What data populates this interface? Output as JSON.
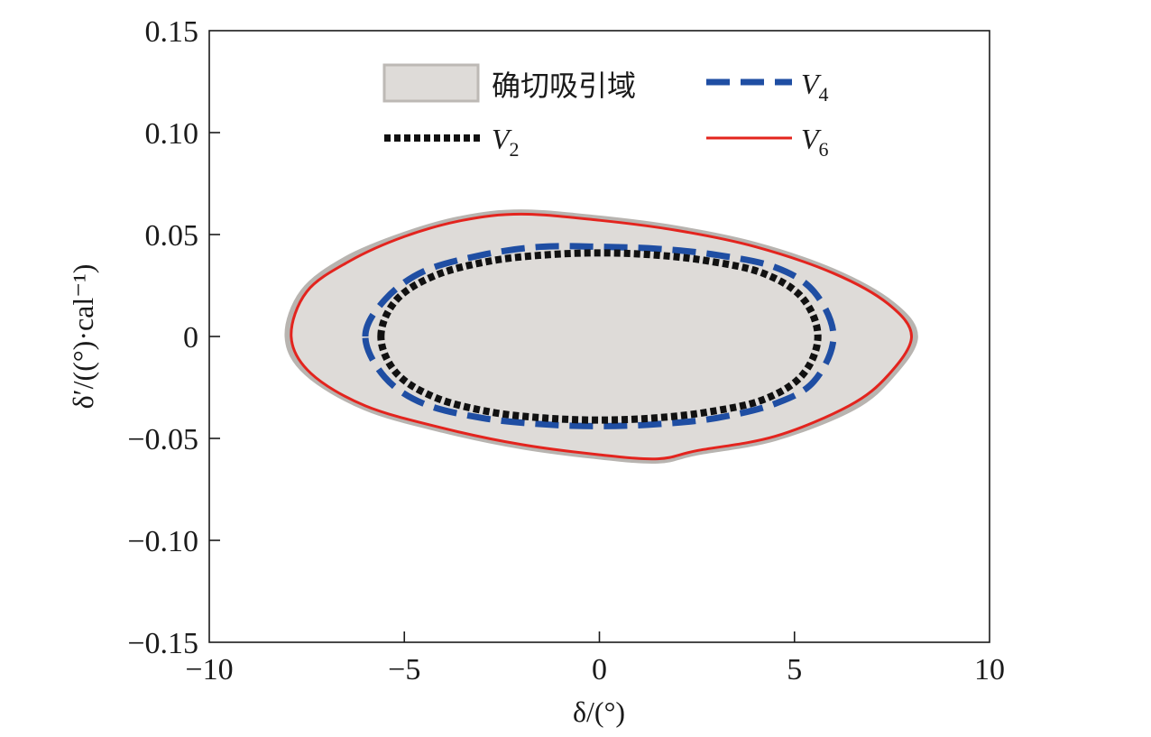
{
  "chart_data": {
    "type": "line",
    "title": "",
    "xlabel": "δ/(°)",
    "ylabel": "δ′/((°)·cal⁻¹)",
    "xlim": [
      -10,
      10
    ],
    "ylim": [
      -0.15,
      0.15
    ],
    "xticks": [
      -10,
      -5,
      0,
      5,
      10
    ],
    "xtick_labels": [
      "−10",
      "−5",
      "0",
      "5",
      "10"
    ],
    "yticks": [
      -0.15,
      -0.1,
      -0.05,
      0,
      0.05,
      0.1,
      0.15
    ],
    "ytick_labels": [
      "−0.15",
      "−0.10",
      "−0.05",
      "0",
      "0.05",
      "0.10",
      "0.15"
    ],
    "grid": false,
    "legend_position": "top",
    "series": [
      {
        "name": "确切吸引域",
        "style": "filled-region",
        "color": "#dedbd8",
        "edge_color": "#b8b4b0",
        "points": [
          [
            -8.0,
            0.0
          ],
          [
            -7.6,
            0.022
          ],
          [
            -6.5,
            0.038
          ],
          [
            -5.0,
            0.05
          ],
          [
            -3.5,
            0.058
          ],
          [
            -2.0,
            0.061
          ],
          [
            0.0,
            0.058
          ],
          [
            2.0,
            0.053
          ],
          [
            4.0,
            0.045
          ],
          [
            6.0,
            0.032
          ],
          [
            7.5,
            0.016
          ],
          [
            8.1,
            0.0
          ],
          [
            7.5,
            -0.019
          ],
          [
            6.5,
            -0.035
          ],
          [
            4.5,
            -0.05
          ],
          [
            2.5,
            -0.057
          ],
          [
            1.5,
            -0.061
          ],
          [
            0.0,
            -0.059
          ],
          [
            -2.0,
            -0.054
          ],
          [
            -4.0,
            -0.046
          ],
          [
            -6.0,
            -0.035
          ],
          [
            -7.5,
            -0.018
          ],
          [
            -8.0,
            0.0
          ]
        ]
      },
      {
        "name": "V4",
        "name_parts": {
          "letter": "V",
          "sub": "4"
        },
        "style": "dashed",
        "color": "#1f4ea3",
        "points": [
          [
            -6.0,
            0.0
          ],
          [
            -5.5,
            0.018
          ],
          [
            -4.5,
            0.032
          ],
          [
            -3.0,
            0.04
          ],
          [
            -1.5,
            0.044
          ],
          [
            0.0,
            0.044
          ],
          [
            1.5,
            0.043
          ],
          [
            3.0,
            0.04
          ],
          [
            4.5,
            0.034
          ],
          [
            5.5,
            0.022
          ],
          [
            6.0,
            0.0
          ],
          [
            5.5,
            -0.022
          ],
          [
            4.5,
            -0.033
          ],
          [
            3.0,
            -0.04
          ],
          [
            1.5,
            -0.043
          ],
          [
            0.0,
            -0.044
          ],
          [
            -1.5,
            -0.043
          ],
          [
            -3.0,
            -0.04
          ],
          [
            -4.5,
            -0.033
          ],
          [
            -5.5,
            -0.02
          ],
          [
            -6.0,
            0.0
          ]
        ]
      },
      {
        "name": "V2",
        "name_parts": {
          "letter": "V",
          "sub": "2"
        },
        "style": "dotted",
        "color": "#111111",
        "points": [
          [
            -5.6,
            0.0
          ],
          [
            -5.2,
            0.018
          ],
          [
            -4.2,
            0.03
          ],
          [
            -2.8,
            0.037
          ],
          [
            -1.4,
            0.04
          ],
          [
            0.0,
            0.041
          ],
          [
            1.4,
            0.04
          ],
          [
            2.8,
            0.037
          ],
          [
            4.2,
            0.031
          ],
          [
            5.2,
            0.019
          ],
          [
            5.6,
            0.0
          ],
          [
            5.2,
            -0.019
          ],
          [
            4.2,
            -0.031
          ],
          [
            2.8,
            -0.037
          ],
          [
            1.4,
            -0.04
          ],
          [
            0.0,
            -0.041
          ],
          [
            -1.4,
            -0.04
          ],
          [
            -2.8,
            -0.037
          ],
          [
            -4.2,
            -0.03
          ],
          [
            -5.2,
            -0.018
          ],
          [
            -5.6,
            0.0
          ]
        ]
      },
      {
        "name": "V6",
        "name_parts": {
          "letter": "V",
          "sub": "6"
        },
        "style": "solid",
        "color": "#e3241e",
        "points": [
          [
            -7.9,
            0.0
          ],
          [
            -7.5,
            0.022
          ],
          [
            -6.4,
            0.037
          ],
          [
            -5.0,
            0.049
          ],
          [
            -3.5,
            0.057
          ],
          [
            -2.0,
            0.06
          ],
          [
            0.0,
            0.057
          ],
          [
            2.0,
            0.052
          ],
          [
            4.0,
            0.044
          ],
          [
            6.0,
            0.031
          ],
          [
            7.4,
            0.016
          ],
          [
            8.0,
            0.0
          ],
          [
            7.4,
            -0.019
          ],
          [
            6.4,
            -0.034
          ],
          [
            4.5,
            -0.049
          ],
          [
            2.5,
            -0.056
          ],
          [
            1.5,
            -0.06
          ],
          [
            0.0,
            -0.058
          ],
          [
            -2.0,
            -0.053
          ],
          [
            -4.0,
            -0.045
          ],
          [
            -6.0,
            -0.034
          ],
          [
            -7.4,
            -0.018
          ],
          [
            -7.9,
            0.0
          ]
        ]
      }
    ],
    "legend": [
      {
        "series": "确切吸引域"
      },
      {
        "series": "V4"
      },
      {
        "series": "V2"
      },
      {
        "series": "V6"
      }
    ]
  }
}
